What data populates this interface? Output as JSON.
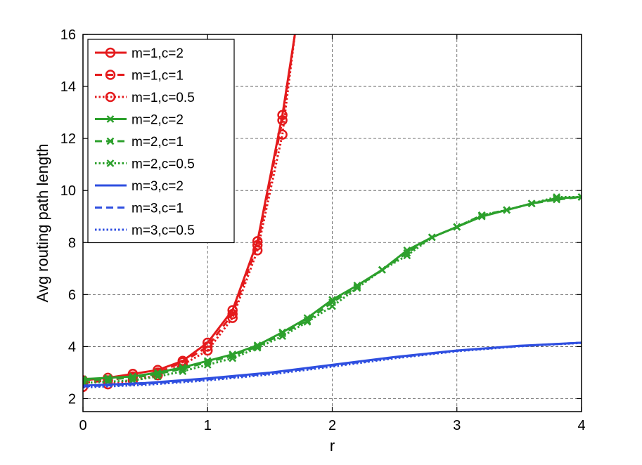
{
  "chart_data": {
    "type": "line",
    "title": "",
    "xlabel": "r",
    "ylabel": "Avg routing path length",
    "xlim": [
      0,
      4
    ],
    "ylim": [
      1.5,
      16
    ],
    "xticks": [
      0,
      1,
      2,
      3,
      4
    ],
    "yticks": [
      2,
      4,
      6,
      8,
      10,
      12,
      14,
      16
    ],
    "grid": true,
    "legend_position": "top-left",
    "series": [
      {
        "name": "m=1,c=2",
        "color": "#e41a1c",
        "style": "solid",
        "marker": "circle",
        "x": [
          0,
          0.2,
          0.4,
          0.6,
          0.8,
          1.0,
          1.2,
          1.4,
          1.6,
          1.7
        ],
        "y": [
          2.7,
          2.8,
          2.95,
          3.1,
          3.45,
          4.15,
          5.4,
          8.05,
          12.9,
          16
        ]
      },
      {
        "name": "m=1,c=1",
        "color": "#e41a1c",
        "style": "dashed",
        "marker": "circle",
        "x": [
          0,
          0.2,
          0.4,
          0.6,
          0.8,
          1.0,
          1.2,
          1.4,
          1.6,
          1.7
        ],
        "y": [
          2.6,
          2.7,
          2.85,
          3.0,
          3.4,
          4.0,
          5.25,
          7.9,
          12.7,
          16
        ]
      },
      {
        "name": "m=1,c=0.5",
        "color": "#e41a1c",
        "style": "dotted",
        "marker": "circle",
        "x": [
          0,
          0.2,
          0.4,
          0.6,
          0.8,
          1.0,
          1.2,
          1.4,
          1.6,
          1.7
        ],
        "y": [
          2.45,
          2.55,
          2.7,
          2.9,
          3.3,
          3.85,
          5.1,
          7.7,
          12.15,
          16
        ]
      },
      {
        "name": "m=2,c=2",
        "color": "#2ca02c",
        "style": "solid",
        "marker": "x",
        "x": [
          0,
          0.2,
          0.4,
          0.6,
          0.8,
          1.0,
          1.2,
          1.4,
          1.6,
          1.8,
          2.0,
          2.2,
          2.4,
          2.6,
          2.8,
          3.0,
          3.2,
          3.4,
          3.6,
          3.8,
          4.0
        ],
        "y": [
          2.75,
          2.8,
          2.85,
          3.0,
          3.2,
          3.45,
          3.7,
          4.05,
          4.55,
          5.1,
          5.8,
          6.35,
          6.95,
          7.7,
          8.2,
          8.6,
          9.0,
          9.25,
          9.5,
          9.7,
          9.75
        ]
      },
      {
        "name": "m=2,c=1",
        "color": "#2ca02c",
        "style": "dashed",
        "marker": "x",
        "x": [
          0,
          0.2,
          0.4,
          0.6,
          0.8,
          1.0,
          1.2,
          1.4,
          1.6,
          1.8,
          2.0,
          2.2,
          2.4,
          2.6,
          2.8,
          3.0,
          3.2,
          3.4,
          3.6,
          3.8,
          4.0
        ],
        "y": [
          2.7,
          2.75,
          2.8,
          2.95,
          3.15,
          3.4,
          3.65,
          4.0,
          4.5,
          5.0,
          5.7,
          6.3,
          6.95,
          7.6,
          8.2,
          8.6,
          9.05,
          9.25,
          9.5,
          9.65,
          9.75
        ]
      },
      {
        "name": "m=2,c=0.5",
        "color": "#2ca02c",
        "style": "dotted",
        "marker": "x",
        "x": [
          0,
          0.2,
          0.4,
          0.6,
          0.8,
          1.0,
          1.2,
          1.4,
          1.6,
          1.8,
          2.0,
          2.2,
          2.4,
          2.6,
          2.8,
          3.0,
          3.2,
          3.4,
          3.6,
          3.8,
          4.0
        ],
        "y": [
          2.6,
          2.65,
          2.7,
          2.85,
          3.05,
          3.3,
          3.55,
          3.95,
          4.4,
          4.95,
          5.55,
          6.25,
          6.95,
          7.5,
          8.2,
          8.6,
          9.05,
          9.25,
          9.5,
          9.75,
          9.75
        ]
      },
      {
        "name": "m=3,c=2",
        "color": "#2f4fe0",
        "style": "solid",
        "marker": "none",
        "x": [
          0,
          0.5,
          1.0,
          1.5,
          2.0,
          2.5,
          3.0,
          3.5,
          4.0
        ],
        "y": [
          2.5,
          2.6,
          2.78,
          3.0,
          3.3,
          3.6,
          3.85,
          4.03,
          4.15
        ]
      },
      {
        "name": "m=3,c=1",
        "color": "#2f4fe0",
        "style": "dashed",
        "marker": "none",
        "x": [
          0,
          0.5,
          1.0,
          1.5,
          2.0,
          2.5,
          3.0,
          3.5,
          4.0
        ],
        "y": [
          2.47,
          2.57,
          2.74,
          2.97,
          3.27,
          3.58,
          3.84,
          4.02,
          4.15
        ]
      },
      {
        "name": "m=3,c=0.5",
        "color": "#2f4fe0",
        "style": "dotted",
        "marker": "none",
        "x": [
          0,
          0.5,
          1.0,
          1.5,
          2.0,
          2.5,
          3.0,
          3.5,
          4.0
        ],
        "y": [
          2.43,
          2.53,
          2.7,
          2.93,
          3.23,
          3.55,
          3.82,
          4.01,
          4.14
        ]
      }
    ]
  }
}
